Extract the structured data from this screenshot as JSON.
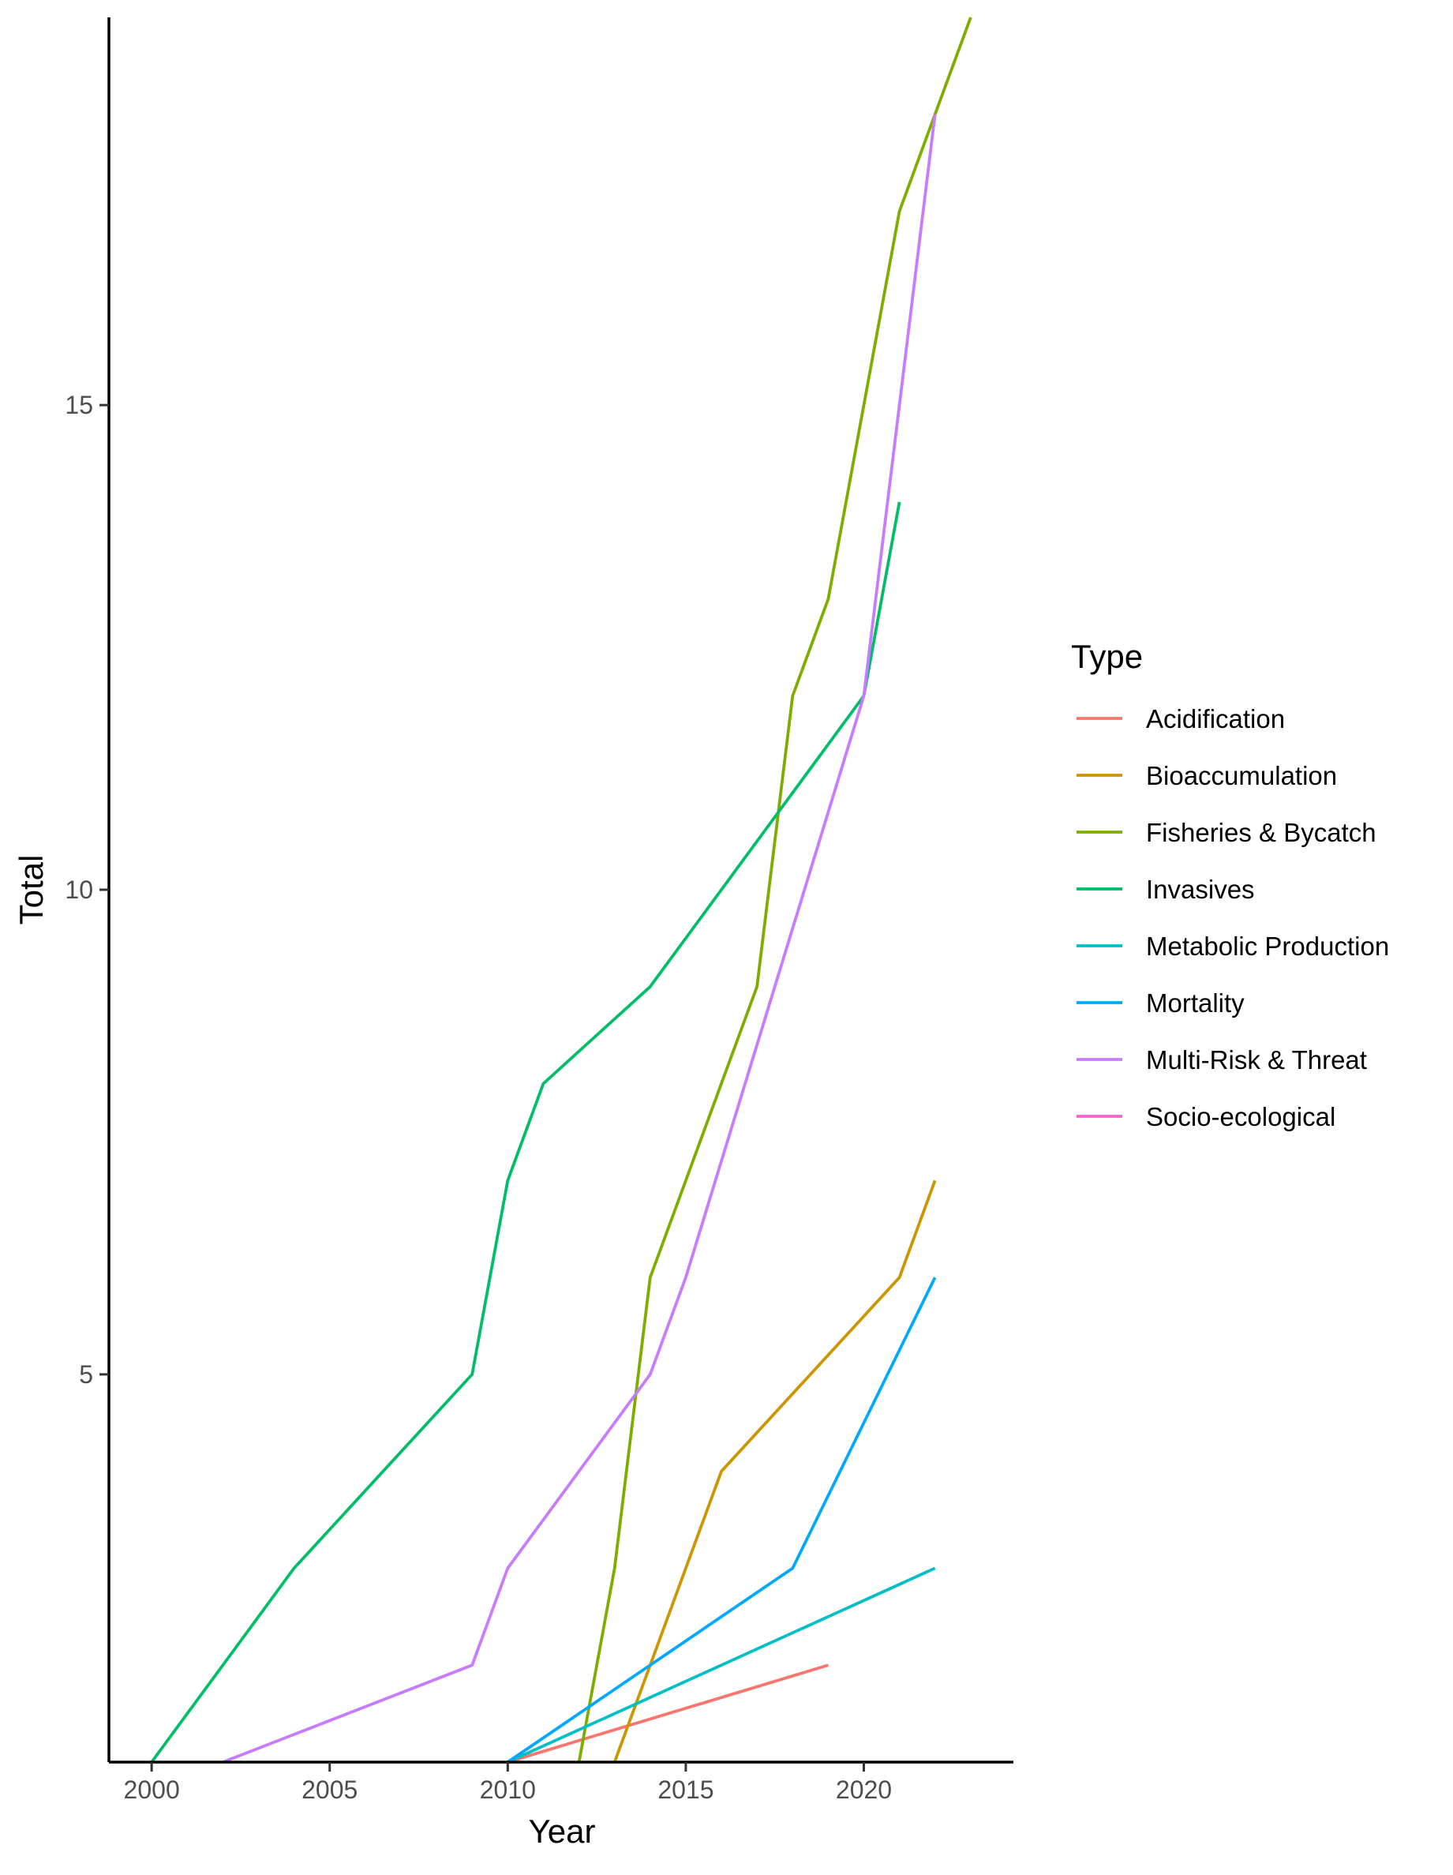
{
  "chart_data": {
    "type": "line",
    "title": "",
    "xlabel": "Year",
    "ylabel": "Total",
    "xlim": [
      1998.8,
      2024.2
    ],
    "ylim": [
      1,
      19
    ],
    "x_ticks": [
      2000,
      2005,
      2010,
      2015,
      2020
    ],
    "y_ticks": [
      5,
      10,
      15
    ],
    "grid": false,
    "legend": {
      "title": "Type",
      "position": "right"
    },
    "series": [
      {
        "name": "Acidification",
        "color": "#F8766D",
        "x": [
          2010,
          2019
        ],
        "y": [
          1,
          2
        ]
      },
      {
        "name": "Bioaccumulation",
        "color": "#CD9600",
        "x": [
          2013,
          2016,
          2021,
          2022
        ],
        "y": [
          1,
          4,
          6,
          7
        ]
      },
      {
        "name": "Fisheries & Bycatch",
        "color": "#7CAE00",
        "x": [
          2012,
          2013,
          2014,
          2017,
          2018,
          2019,
          2020,
          2021,
          2022,
          2023
        ],
        "y": [
          1,
          3,
          6,
          9,
          12,
          13,
          15,
          17,
          18,
          19
        ]
      },
      {
        "name": "Invasives",
        "color": "#00BE67",
        "x": [
          2000,
          2004,
          2009,
          2010,
          2011,
          2014,
          2020,
          2021
        ],
        "y": [
          1,
          3,
          5,
          7,
          8,
          9,
          12,
          14
        ]
      },
      {
        "name": "Metabolic Production",
        "color": "#00BFC4",
        "x": [
          2010,
          2022
        ],
        "y": [
          1,
          3
        ]
      },
      {
        "name": "Mortality",
        "color": "#00A9FF",
        "x": [
          2010,
          2014,
          2018,
          2022
        ],
        "y": [
          1,
          2,
          3,
          6
        ]
      },
      {
        "name": "Multi-Risk & Threat",
        "color": "#C77CFF",
        "x": [
          2002,
          2009,
          2010,
          2014,
          2015,
          2020,
          2022
        ],
        "y": [
          1,
          2,
          3,
          5,
          6,
          12,
          18
        ]
      },
      {
        "name": "Socio-ecological",
        "color": "#FF61CC",
        "x": [],
        "y": []
      }
    ]
  }
}
